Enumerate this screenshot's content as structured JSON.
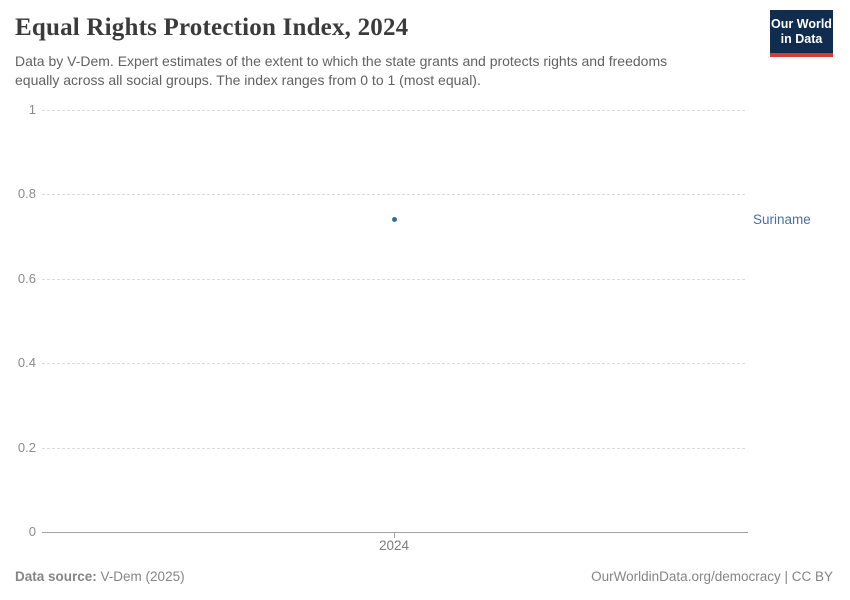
{
  "header": {
    "title": "Equal Rights Protection Index, 2024",
    "subtitle_line1": "Data by V-Dem. Expert estimates of the extent to which the state grants and protects rights and freedoms",
    "subtitle_line2": "equally across all social groups. The index ranges from 0 to 1 (most equal).",
    "logo_line1": "Our World",
    "logo_line2": "in Data"
  },
  "chart_data": {
    "type": "scatter",
    "title": "Equal Rights Protection Index, 2024",
    "x": [
      2024
    ],
    "series": [
      {
        "name": "Suriname",
        "values": [
          0.74
        ]
      }
    ],
    "xlabel": "",
    "ylabel": "",
    "ylim": [
      0,
      1
    ],
    "yticks": [
      0,
      0.2,
      0.4,
      0.6,
      0.8,
      1
    ],
    "xticks": [
      2024
    ],
    "grid": "horizontal-dashed",
    "legend": "entity-label-right",
    "point_color": "#3d6a9d",
    "entity_label_color": "#4a6fa5"
  },
  "chart": {
    "y_tick_labels": [
      "1",
      "0.8",
      "0.6",
      "0.4",
      "0.2",
      "0"
    ],
    "x_tick_label": "2024",
    "point_label": "Suriname"
  },
  "footer": {
    "source_label": "Data source:",
    "source_value": "V-Dem (2025)",
    "right_text": "OurWorldinData.org/democracy | CC BY"
  },
  "colors": {
    "title": "#3b3b3b",
    "subtitle": "#616161",
    "axis_text": "#8b8b8b",
    "gridline": "#dcdcdc",
    "axis_line": "#a1a1a1",
    "point_blue": "#3d6a9d",
    "label_blue": "#4a6fa5",
    "logo_navy": "#102d50",
    "logo_red": "#d73c34",
    "footer_gray": "#858585"
  }
}
